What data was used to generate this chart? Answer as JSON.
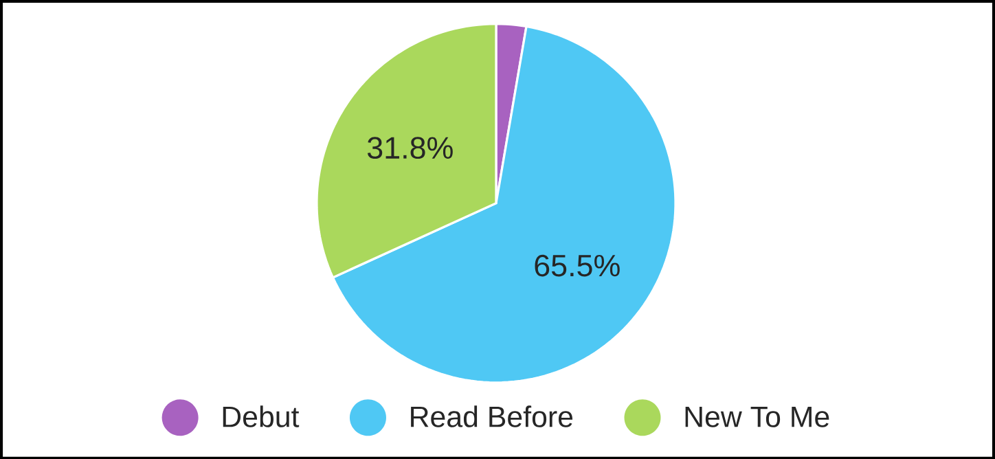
{
  "chart_data": {
    "type": "pie",
    "categories": [
      "Debut",
      "Read Before",
      "New To Me"
    ],
    "values": [
      2.7,
      65.5,
      31.8
    ],
    "value_labels": [
      null,
      "65.5%",
      "31.8%"
    ],
    "colors": [
      "#a862c0",
      "#4fc8f4",
      "#aad85c"
    ],
    "legend": "bottom"
  }
}
